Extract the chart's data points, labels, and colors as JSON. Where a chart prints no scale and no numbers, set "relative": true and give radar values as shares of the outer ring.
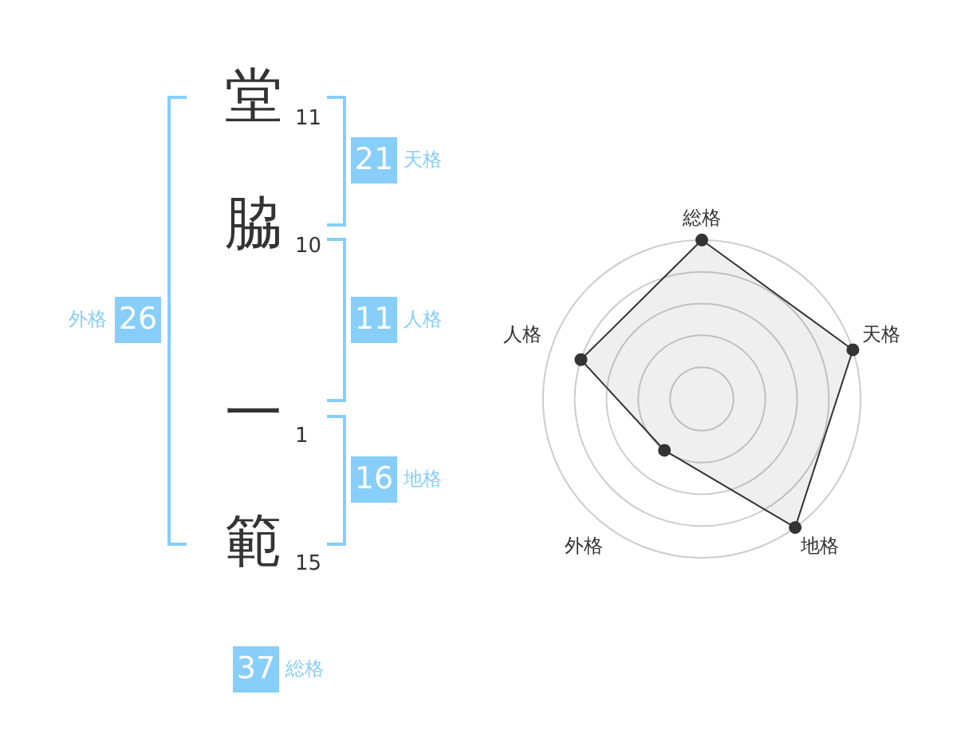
{
  "chart_data": [
    {
      "type": "other",
      "categories": [
        "堂",
        "脇",
        "一",
        "範"
      ],
      "values": [
        11,
        10,
        1,
        15
      ],
      "data_labels": true
    },
    {
      "type": "other",
      "categories": [
        "天格",
        "人格",
        "地格",
        "外格",
        "総格"
      ],
      "values": [
        21,
        11,
        16,
        26,
        37
      ],
      "color": "#87cefa",
      "data_labels": true
    },
    {
      "type": "radar",
      "categories": [
        "総格",
        "天格",
        "地格",
        "外格",
        "人格"
      ],
      "relative": true,
      "series": [
        {
          "color": "#333333",
          "values": [
            1,
            1,
            1,
            0.4,
            0.8
          ]
        }
      ],
      "grid": true,
      "marker": "circle"
    }
  ]
}
